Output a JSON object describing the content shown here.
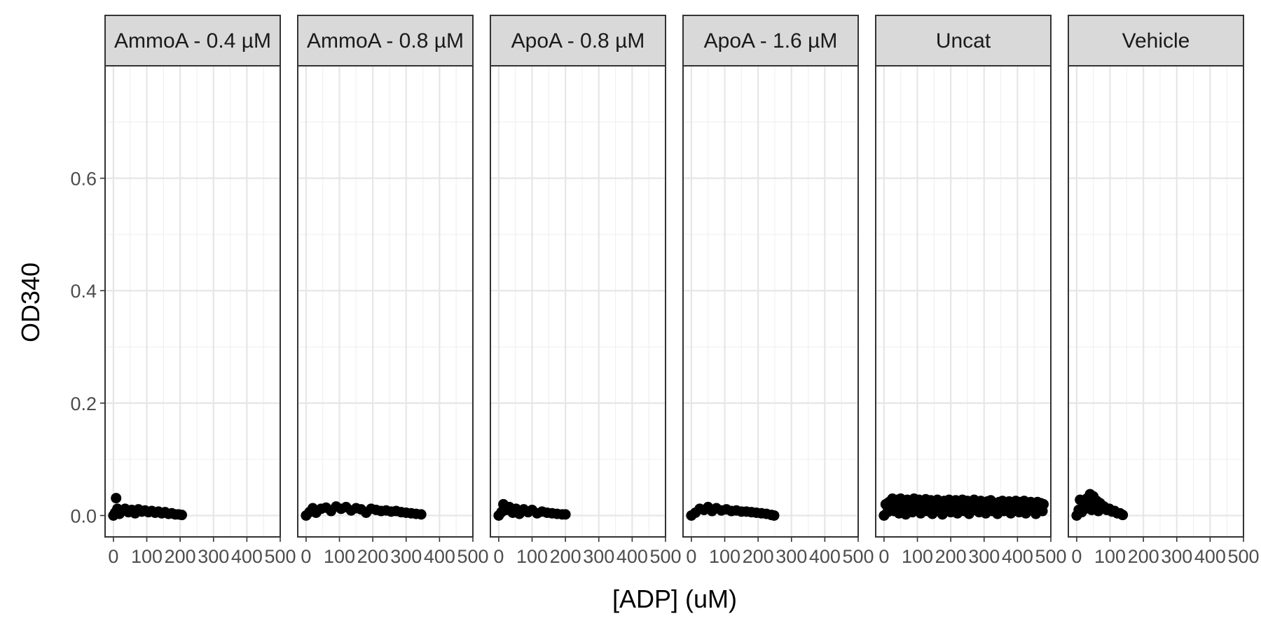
{
  "chart_data": {
    "type": "scatter",
    "title": "",
    "xlabel": "[ADP] (uM)",
    "ylabel": "OD340",
    "xlim": [
      -25,
      500
    ],
    "ylim": [
      -0.038,
      0.8
    ],
    "x_ticks": [
      0,
      100,
      200,
      300,
      400,
      500
    ],
    "x_tick_labels": [
      "0",
      "100",
      "200",
      "300",
      "400",
      "500"
    ],
    "y_ticks": [
      0.0,
      0.2,
      0.4,
      0.6
    ],
    "y_tick_labels": [
      "0.0",
      "0.2",
      "0.4",
      "0.6"
    ],
    "grid": true,
    "point_color": "#000000",
    "panels": [
      {
        "strip_label": "AmmoA - 0.4 µM",
        "points": [
          [
            0,
            0.0
          ],
          [
            5,
            0.005
          ],
          [
            8,
            0.031
          ],
          [
            12,
            0.012
          ],
          [
            18,
            0.003
          ],
          [
            25,
            0.008
          ],
          [
            35,
            0.012
          ],
          [
            45,
            0.006
          ],
          [
            55,
            0.01
          ],
          [
            65,
            0.004
          ],
          [
            75,
            0.011
          ],
          [
            85,
            0.007
          ],
          [
            95,
            0.009
          ],
          [
            105,
            0.006
          ],
          [
            115,
            0.008
          ],
          [
            125,
            0.005
          ],
          [
            135,
            0.007
          ],
          [
            145,
            0.004
          ],
          [
            155,
            0.006
          ],
          [
            165,
            0.003
          ],
          [
            175,
            0.004
          ],
          [
            185,
            0.002
          ],
          [
            195,
            0.002
          ],
          [
            205,
            0.001
          ]
        ]
      },
      {
        "strip_label": "AmmoA - 0.8 µM",
        "points": [
          [
            0,
            0.0
          ],
          [
            10,
            0.006
          ],
          [
            20,
            0.013
          ],
          [
            30,
            0.005
          ],
          [
            45,
            0.012
          ],
          [
            60,
            0.014
          ],
          [
            75,
            0.008
          ],
          [
            90,
            0.016
          ],
          [
            105,
            0.012
          ],
          [
            120,
            0.015
          ],
          [
            135,
            0.009
          ],
          [
            150,
            0.013
          ],
          [
            165,
            0.011
          ],
          [
            180,
            0.005
          ],
          [
            195,
            0.012
          ],
          [
            210,
            0.01
          ],
          [
            225,
            0.008
          ],
          [
            240,
            0.009
          ],
          [
            255,
            0.007
          ],
          [
            270,
            0.008
          ],
          [
            285,
            0.006
          ],
          [
            300,
            0.005
          ],
          [
            315,
            0.004
          ],
          [
            330,
            0.003
          ],
          [
            345,
            0.002
          ]
        ]
      },
      {
        "strip_label": "ApoA - 0.8 µM",
        "points": [
          [
            0,
            0.0
          ],
          [
            8,
            0.006
          ],
          [
            14,
            0.02
          ],
          [
            22,
            0.01
          ],
          [
            32,
            0.015
          ],
          [
            42,
            0.005
          ],
          [
            52,
            0.012
          ],
          [
            62,
            0.003
          ],
          [
            75,
            0.011
          ],
          [
            88,
            0.006
          ],
          [
            100,
            0.01
          ],
          [
            115,
            0.004
          ],
          [
            130,
            0.007
          ],
          [
            145,
            0.005
          ],
          [
            160,
            0.004
          ],
          [
            175,
            0.003
          ],
          [
            190,
            0.002
          ],
          [
            200,
            0.002
          ]
        ]
      },
      {
        "strip_label": "ApoA - 1.6 µM",
        "points": [
          [
            0,
            0.0
          ],
          [
            12,
            0.005
          ],
          [
            25,
            0.012
          ],
          [
            38,
            0.01
          ],
          [
            50,
            0.015
          ],
          [
            62,
            0.008
          ],
          [
            75,
            0.013
          ],
          [
            90,
            0.009
          ],
          [
            105,
            0.011
          ],
          [
            120,
            0.008
          ],
          [
            135,
            0.009
          ],
          [
            150,
            0.007
          ],
          [
            165,
            0.007
          ],
          [
            180,
            0.006
          ],
          [
            195,
            0.005
          ],
          [
            210,
            0.004
          ],
          [
            225,
            0.003
          ],
          [
            240,
            0.001
          ],
          [
            248,
            0.0
          ]
        ]
      },
      {
        "strip_label": "Uncat",
        "points": [
          [
            0,
            0.0
          ],
          [
            5,
            0.02
          ],
          [
            10,
            0.006
          ],
          [
            15,
            0.024
          ],
          [
            20,
            0.012
          ],
          [
            25,
            0.03
          ],
          [
            30,
            0.008
          ],
          [
            35,
            0.018
          ],
          [
            40,
            0.028
          ],
          [
            45,
            0.004
          ],
          [
            50,
            0.03
          ],
          [
            55,
            0.014
          ],
          [
            60,
            0.022
          ],
          [
            65,
            0.002
          ],
          [
            70,
            0.028
          ],
          [
            75,
            0.012
          ],
          [
            80,
            0.026
          ],
          [
            85,
            0.006
          ],
          [
            90,
            0.03
          ],
          [
            95,
            0.018
          ],
          [
            100,
            0.01
          ],
          [
            105,
            0.028
          ],
          [
            110,
            0.004
          ],
          [
            115,
            0.024
          ],
          [
            120,
            0.016
          ],
          [
            125,
            0.029
          ],
          [
            130,
            0.008
          ],
          [
            135,
            0.02
          ],
          [
            140,
            0.027
          ],
          [
            145,
            0.003
          ],
          [
            150,
            0.022
          ],
          [
            155,
            0.014
          ],
          [
            160,
            0.028
          ],
          [
            165,
            0.009
          ],
          [
            170,
            0.024
          ],
          [
            175,
            0.002
          ],
          [
            180,
            0.026
          ],
          [
            185,
            0.016
          ],
          [
            190,
            0.012
          ],
          [
            195,
            0.028
          ],
          [
            200,
            0.006
          ],
          [
            205,
            0.022
          ],
          [
            210,
            0.018
          ],
          [
            215,
            0.027
          ],
          [
            220,
            0.004
          ],
          [
            225,
            0.024
          ],
          [
            230,
            0.013
          ],
          [
            235,
            0.028
          ],
          [
            240,
            0.008
          ],
          [
            245,
            0.02
          ],
          [
            250,
            0.026
          ],
          [
            255,
            0.003
          ],
          [
            260,
            0.022
          ],
          [
            265,
            0.016
          ],
          [
            270,
            0.028
          ],
          [
            275,
            0.01
          ],
          [
            280,
            0.024
          ],
          [
            285,
            0.006
          ],
          [
            290,
            0.026
          ],
          [
            295,
            0.014
          ],
          [
            300,
            0.02
          ],
          [
            305,
            0.004
          ],
          [
            310,
            0.025
          ],
          [
            315,
            0.012
          ],
          [
            320,
            0.027
          ],
          [
            325,
            0.008
          ],
          [
            330,
            0.022
          ],
          [
            335,
            0.016
          ],
          [
            340,
            0.003
          ],
          [
            345,
            0.024
          ],
          [
            350,
            0.012
          ],
          [
            355,
            0.026
          ],
          [
            360,
            0.008
          ],
          [
            365,
            0.02
          ],
          [
            370,
            0.014
          ],
          [
            375,
            0.025
          ],
          [
            380,
            0.004
          ],
          [
            385,
            0.022
          ],
          [
            390,
            0.01
          ],
          [
            395,
            0.026
          ],
          [
            400,
            0.016
          ],
          [
            405,
            0.006
          ],
          [
            410,
            0.024
          ],
          [
            415,
            0.013
          ],
          [
            420,
            0.026
          ],
          [
            425,
            0.004
          ],
          [
            430,
            0.021
          ],
          [
            435,
            0.016
          ],
          [
            440,
            0.024
          ],
          [
            445,
            0.009
          ],
          [
            450,
            0.02
          ],
          [
            455,
            0.003
          ],
          [
            460,
            0.024
          ],
          [
            465,
            0.014
          ],
          [
            470,
            0.022
          ],
          [
            475,
            0.008
          ],
          [
            478,
            0.02
          ]
        ]
      },
      {
        "strip_label": "Vehicle",
        "points": [
          [
            0,
            0.0
          ],
          [
            6,
            0.01
          ],
          [
            10,
            0.028
          ],
          [
            15,
            0.006
          ],
          [
            20,
            0.022
          ],
          [
            25,
            0.012
          ],
          [
            30,
            0.03
          ],
          [
            35,
            0.016
          ],
          [
            40,
            0.038
          ],
          [
            45,
            0.01
          ],
          [
            50,
            0.034
          ],
          [
            55,
            0.02
          ],
          [
            60,
            0.026
          ],
          [
            65,
            0.008
          ],
          [
            70,
            0.022
          ],
          [
            75,
            0.014
          ],
          [
            82,
            0.016
          ],
          [
            90,
            0.01
          ],
          [
            98,
            0.012
          ],
          [
            106,
            0.007
          ],
          [
            114,
            0.008
          ],
          [
            122,
            0.004
          ],
          [
            130,
            0.004
          ],
          [
            138,
            0.001
          ]
        ]
      }
    ]
  }
}
